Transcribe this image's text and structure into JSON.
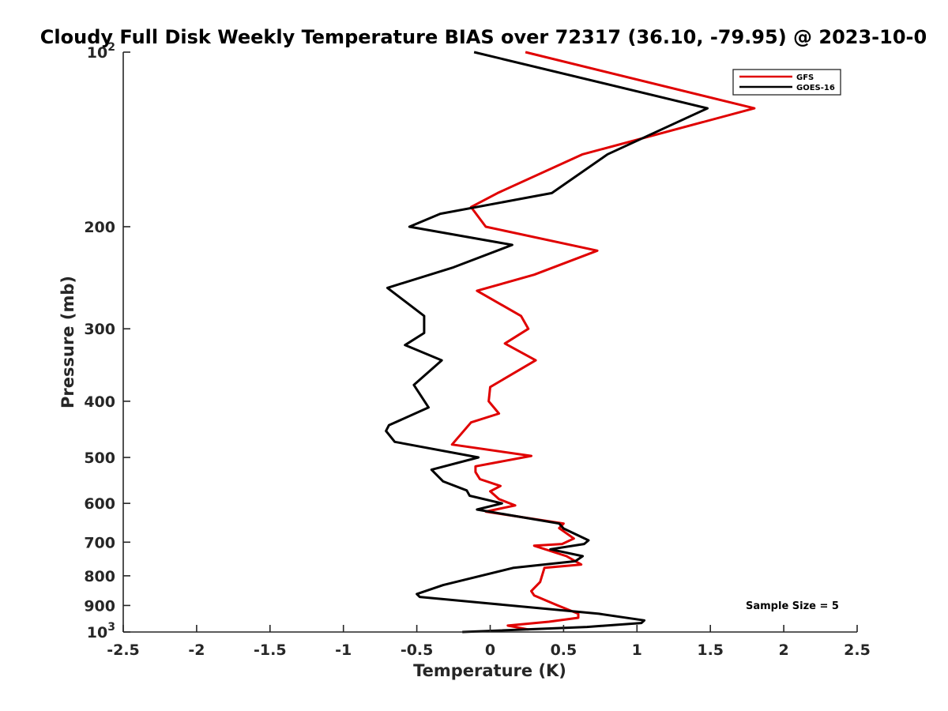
{
  "chart_data": {
    "type": "line",
    "title": "Cloudy Full Disk Weekly Temperature BIAS over 72317 (36.10, -79.95) @ 2023-10-0",
    "xlabel": "Temperature (K)",
    "ylabel": "Pressure (mb)",
    "xlim": [
      -2.5,
      2.5
    ],
    "ylim": [
      100,
      1000
    ],
    "y_scale": "log",
    "y_reversed": true,
    "x_ticks": [
      "-2.5",
      "-2",
      "-1.5",
      "-1",
      "-0.5",
      "0",
      "0.5",
      "1",
      "1.5",
      "2",
      "2.5"
    ],
    "x_tick_values": [
      -2.5,
      -2,
      -1.5,
      -1,
      -0.5,
      0,
      0.5,
      1,
      1.5,
      2,
      2.5
    ],
    "y_ticks": [
      {
        "value": 100,
        "base": "10",
        "exp": "2"
      },
      {
        "value": 200,
        "label": "200"
      },
      {
        "value": 300,
        "label": "300"
      },
      {
        "value": 400,
        "label": "400"
      },
      {
        "value": 500,
        "label": "500"
      },
      {
        "value": 600,
        "label": "600"
      },
      {
        "value": 700,
        "label": "700"
      },
      {
        "value": 800,
        "label": "800"
      },
      {
        "value": 900,
        "label": "900"
      },
      {
        "value": 1000,
        "base": "10",
        "exp": "3"
      }
    ],
    "grid": false,
    "legend_position": "top-right",
    "series": [
      {
        "name": "GFS",
        "color": "#e00000",
        "points": [
          [
            0.24,
            100
          ],
          [
            1.8,
            125
          ],
          [
            0.63,
            150
          ],
          [
            0.05,
            175
          ],
          [
            -0.13,
            185
          ],
          [
            -0.03,
            200
          ],
          [
            0.73,
            220
          ],
          [
            0.3,
            242
          ],
          [
            -0.09,
            258
          ],
          [
            0.21,
            285
          ],
          [
            0.26,
            300
          ],
          [
            0.1,
            318
          ],
          [
            0.31,
            340
          ],
          [
            0.0,
            378
          ],
          [
            -0.01,
            400
          ],
          [
            0.06,
            420
          ],
          [
            -0.13,
            435
          ],
          [
            -0.26,
            475
          ],
          [
            0.28,
            497
          ],
          [
            -0.1,
            518
          ],
          [
            -0.1,
            530
          ],
          [
            -0.07,
            545
          ],
          [
            0.07,
            560
          ],
          [
            0.0,
            572
          ],
          [
            0.06,
            590
          ],
          [
            0.17,
            605
          ],
          [
            -0.03,
            620
          ],
          [
            0.5,
            650
          ],
          [
            0.47,
            662
          ],
          [
            0.57,
            690
          ],
          [
            0.49,
            705
          ],
          [
            0.3,
            710
          ],
          [
            0.52,
            740
          ],
          [
            0.62,
            765
          ],
          [
            0.37,
            775
          ],
          [
            0.34,
            820
          ],
          [
            0.28,
            850
          ],
          [
            0.3,
            865
          ],
          [
            0.46,
            900
          ],
          [
            0.6,
            930
          ],
          [
            0.6,
            945
          ],
          [
            0.4,
            960
          ],
          [
            0.12,
            975
          ],
          [
            0.26,
            990
          ]
        ]
      },
      {
        "name": "GOES-16",
        "color": "#000000",
        "points": [
          [
            -0.11,
            100
          ],
          [
            1.48,
            125
          ],
          [
            0.8,
            150
          ],
          [
            0.42,
            175
          ],
          [
            -0.34,
            190
          ],
          [
            -0.55,
            200
          ],
          [
            0.15,
            215
          ],
          [
            -0.25,
            235
          ],
          [
            -0.7,
            255
          ],
          [
            -0.45,
            285
          ],
          [
            -0.45,
            305
          ],
          [
            -0.58,
            320
          ],
          [
            -0.33,
            340
          ],
          [
            -0.52,
            375
          ],
          [
            -0.42,
            410
          ],
          [
            -0.69,
            440
          ],
          [
            -0.71,
            450
          ],
          [
            -0.65,
            470
          ],
          [
            -0.08,
            500
          ],
          [
            -0.4,
            525
          ],
          [
            -0.32,
            550
          ],
          [
            -0.16,
            570
          ],
          [
            -0.14,
            582
          ],
          [
            0.08,
            600
          ],
          [
            -0.09,
            615
          ],
          [
            0.47,
            650
          ],
          [
            0.5,
            663
          ],
          [
            0.67,
            695
          ],
          [
            0.64,
            705
          ],
          [
            0.41,
            720
          ],
          [
            0.63,
            740
          ],
          [
            0.58,
            755
          ],
          [
            0.16,
            775
          ],
          [
            -0.32,
            830
          ],
          [
            -0.5,
            860
          ],
          [
            -0.48,
            870
          ],
          [
            0.74,
            930
          ],
          [
            1.05,
            955
          ],
          [
            1.03,
            965
          ],
          [
            0.66,
            980
          ],
          [
            -0.19,
            1000
          ]
        ]
      }
    ],
    "legend": [
      {
        "label": "GFS",
        "color": "#e00000"
      },
      {
        "label": "GOES-16",
        "color": "#000000"
      }
    ],
    "annotation": "Sample Size = 5"
  }
}
